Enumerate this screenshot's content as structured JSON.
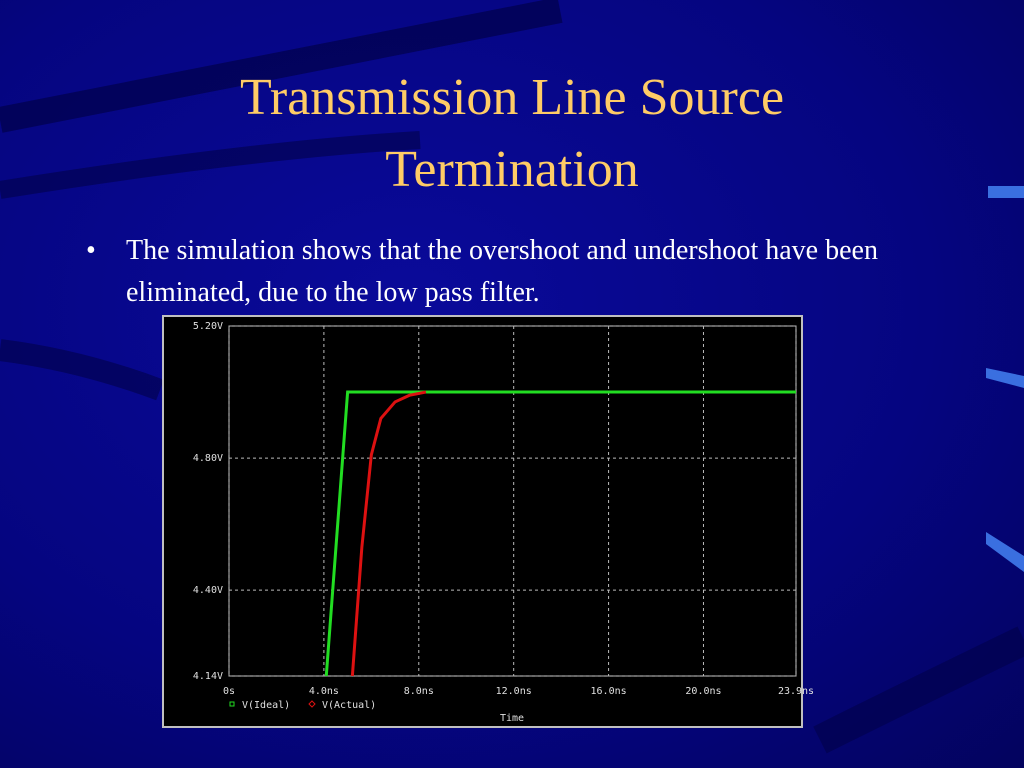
{
  "slide": {
    "title": "Transmission Line Source Termination",
    "bullets": [
      "The simulation shows that the overshoot and undershoot have been eliminated, due to the low pass filter."
    ]
  },
  "chart_data": {
    "type": "line",
    "xlabel": "Time",
    "xlim": [
      0,
      23.9
    ],
    "xticks": [
      {
        "value": 0,
        "label": "0s"
      },
      {
        "value": 4.0,
        "label": "4.0ns"
      },
      {
        "value": 8.0,
        "label": "8.0ns"
      },
      {
        "value": 12.0,
        "label": "12.0ns"
      },
      {
        "value": 16.0,
        "label": "16.0ns"
      },
      {
        "value": 20.0,
        "label": "20.0ns"
      },
      {
        "value": 23.9,
        "label": "23.9ns"
      }
    ],
    "ylim": [
      4.14,
      5.2
    ],
    "yticks": [
      {
        "value": 4.14,
        "label": "4.14V"
      },
      {
        "value": 4.4,
        "label": "4.40V"
      },
      {
        "value": 4.8,
        "label": "4.80V"
      },
      {
        "value": 5.2,
        "label": "5.20V"
      }
    ],
    "grid": true,
    "series": [
      {
        "name": "V(Ideal)",
        "color": "#22dd22",
        "x": [
          4.1,
          5.0,
          23.9
        ],
        "values": [
          4.14,
          5.0,
          5.0
        ]
      },
      {
        "name": "V(Actual)",
        "color": "#dd1111",
        "x": [
          5.2,
          5.6,
          6.0,
          6.4,
          7.0,
          7.6,
          8.3
        ],
        "values": [
          4.14,
          4.53,
          4.81,
          4.92,
          4.97,
          4.99,
          5.0
        ]
      }
    ]
  }
}
